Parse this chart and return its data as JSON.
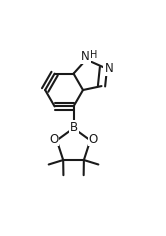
{
  "bg_color": "#ffffff",
  "line_color": "#1a1a1a",
  "line_width": 1.5,
  "font_size_atoms": 8.5,
  "font_size_H": 7.0,
  "xlim": [
    0.0,
    1.0
  ],
  "ylim": [
    0.0,
    1.42
  ]
}
